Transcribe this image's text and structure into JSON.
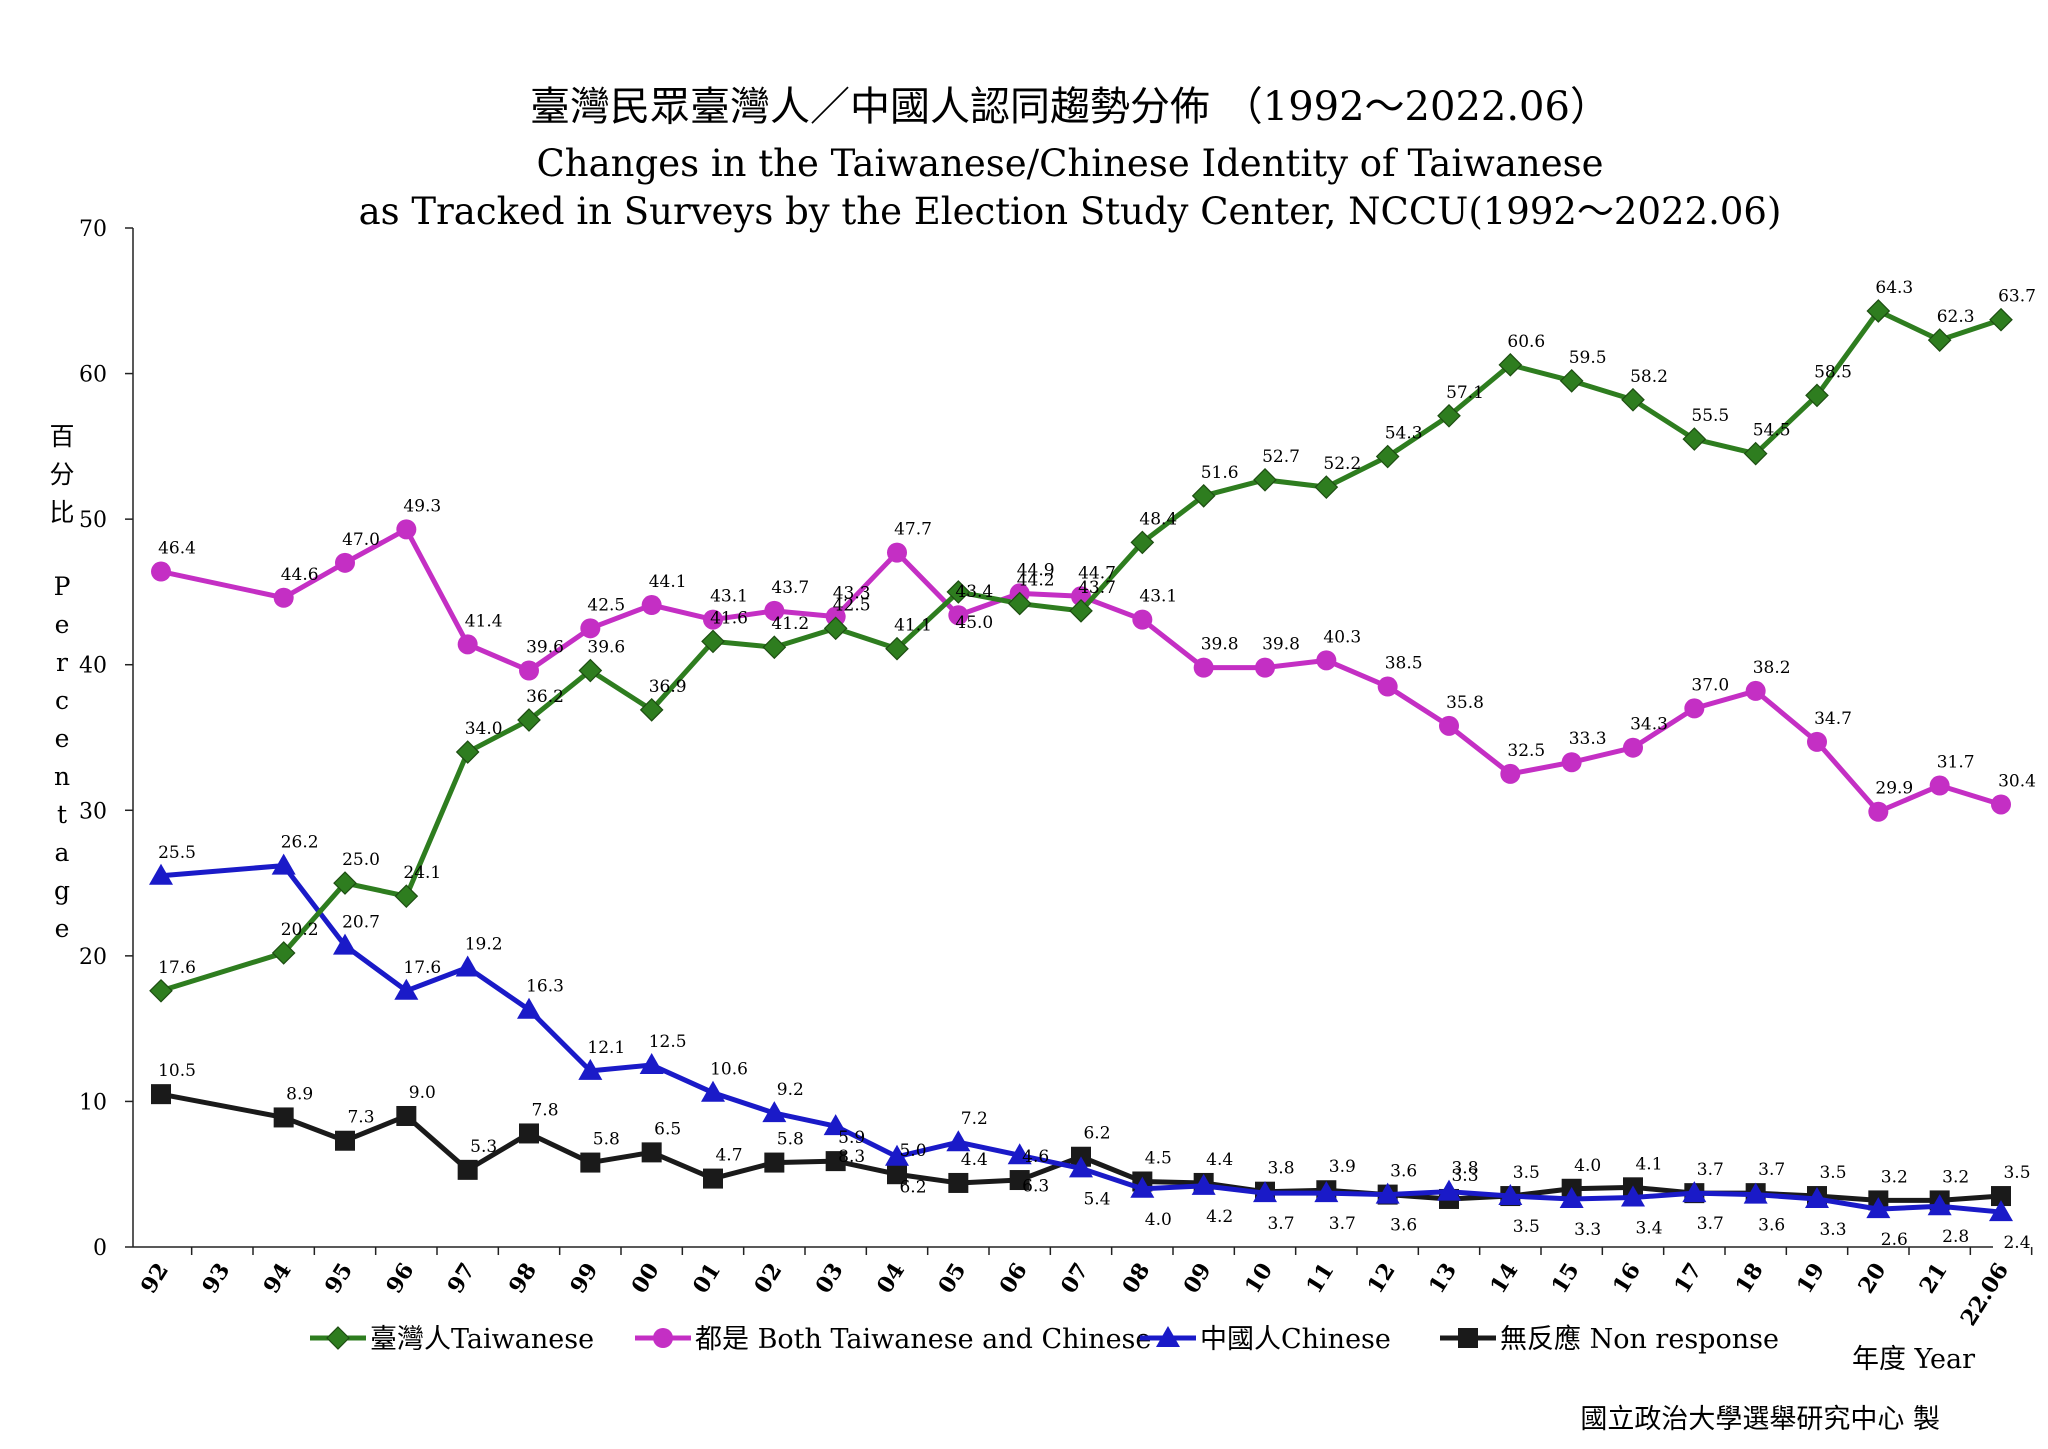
{
  "chart_data": {
    "type": "line",
    "title": "臺灣民眾臺灣人／中國人認同趨勢分佈 （1992～2022.06）",
    "subtitle_line1": "Changes in the Taiwanese/Chinese Identity of Taiwanese",
    "subtitle_line2": "as Tracked in Surveys by the Election Study Center, NCCU(1992～2022.06)",
    "ylabel_zh": [
      "百",
      "分",
      "比"
    ],
    "ylabel_en": [
      "P",
      "e",
      "r",
      "c",
      "e",
      "n",
      "t",
      "a",
      "g",
      "e"
    ],
    "xlabel": "年度 Year",
    "credit": "國立政治大學選舉研究中心 製",
    "ylim": [
      0,
      70
    ],
    "yticks": [
      0,
      10,
      20,
      30,
      40,
      50,
      60,
      70
    ],
    "categories": [
      "92",
      "93",
      "94",
      "95",
      "96",
      "97",
      "98",
      "99",
      "00",
      "01",
      "02",
      "03",
      "04",
      "05",
      "06",
      "07",
      "08",
      "09",
      "10",
      "11",
      "12",
      "13",
      "14",
      "15",
      "16",
      "17",
      "18",
      "19",
      "20",
      "21",
      "22.06"
    ],
    "series": [
      {
        "name": "臺灣人Taiwanese",
        "color": "#2e7d1f",
        "marker": "diamond",
        "values": [
          17.6,
          null,
          20.2,
          25.0,
          24.1,
          34.0,
          36.2,
          39.6,
          36.9,
          41.6,
          41.2,
          42.5,
          41.1,
          45.0,
          44.2,
          43.7,
          48.4,
          51.6,
          52.7,
          52.2,
          54.3,
          57.1,
          60.6,
          59.5,
          58.2,
          55.5,
          54.5,
          58.5,
          64.3,
          62.3,
          63.7
        ],
        "labels": [
          "17.6",
          null,
          "20.2",
          "25.0",
          "24.1",
          "34.0",
          "36.2",
          "39.6",
          "36.9",
          "41.6",
          "41.2",
          "42.5",
          "41.1",
          "45.0",
          "44.2",
          "43.7",
          "48.4",
          "51.6",
          "52.7",
          "52.2",
          "54.3",
          "57.1",
          "60.6",
          "59.5",
          "58.2",
          "55.5",
          "54.5",
          "58.5",
          "64.3",
          "62.3",
          "63.7"
        ]
      },
      {
        "name": "都是 Both Taiwanese and Chinese",
        "color": "#c42fc4",
        "marker": "circle",
        "values": [
          46.4,
          null,
          44.6,
          47.0,
          49.3,
          41.4,
          39.6,
          42.5,
          44.1,
          43.1,
          43.7,
          43.3,
          47.7,
          43.4,
          44.9,
          44.7,
          43.1,
          39.8,
          39.8,
          40.3,
          38.5,
          35.8,
          32.5,
          33.3,
          34.3,
          37.0,
          38.2,
          34.7,
          29.9,
          31.7,
          30.4
        ],
        "labels": [
          "46.4",
          null,
          "44.6",
          "47.0",
          "49.3",
          "41.4",
          "39.6",
          "42.5",
          "44.1",
          "43.1",
          "43.7",
          "43.3",
          "47.7",
          "43.4",
          "44.9",
          "44.7",
          "43.1",
          "39.8",
          "39.8",
          "40.3",
          "38.5",
          "35.8",
          "32.5",
          "33.3",
          "34.3",
          "37.0",
          "38.2",
          "34.7",
          "29.9",
          "31.7",
          "30.4"
        ]
      },
      {
        "name": "中國人Chinese",
        "color": "#1a1ac8",
        "marker": "triangle",
        "values": [
          25.5,
          null,
          26.2,
          20.7,
          17.6,
          19.2,
          16.3,
          12.1,
          12.5,
          10.6,
          9.2,
          8.3,
          6.2,
          7.2,
          6.3,
          5.4,
          4.0,
          4.2,
          3.7,
          3.7,
          3.6,
          3.8,
          3.5,
          3.3,
          3.4,
          3.7,
          3.6,
          3.3,
          2.6,
          2.8,
          2.4
        ],
        "labels": [
          "25.5",
          null,
          "26.2",
          "20.7",
          "17.6",
          "19.2",
          "16.3",
          "12.1",
          "12.5",
          "10.6",
          "9.2",
          "8.3",
          "6.2",
          "7.2",
          "6.3",
          "5.4",
          "4.0",
          "4.2",
          "3.7",
          "3.7",
          "3.6",
          "3.8",
          "3.5",
          "3.3",
          "3.4",
          "3.7",
          "3.6",
          "3.3",
          "2.6",
          "2.8",
          "2.4"
        ]
      },
      {
        "name": "無反應 Non response",
        "color": "#1a1a1a",
        "marker": "square",
        "values": [
          10.5,
          null,
          8.9,
          7.3,
          9.0,
          5.3,
          7.8,
          5.8,
          6.5,
          4.7,
          5.8,
          5.9,
          5.0,
          4.4,
          4.6,
          6.2,
          4.5,
          4.4,
          3.8,
          3.9,
          3.6,
          3.3,
          3.5,
          4.0,
          4.1,
          3.7,
          3.7,
          3.5,
          3.2,
          3.2,
          3.5
        ],
        "labels": [
          "10.5",
          null,
          "8.9",
          "7.3",
          "9.0",
          "5.3",
          "7.8",
          "5.8",
          "6.5",
          "4.7",
          "5.8",
          "5.9",
          "5.0",
          "4.4",
          "4.6",
          "6.2",
          "4.5",
          "4.4",
          "3.8",
          "3.9",
          "3.6",
          "3.3",
          "3.5",
          "4.0",
          "4.1",
          "3.7",
          "3.7",
          "3.5",
          "3.2",
          "3.2",
          "3.5"
        ]
      }
    ],
    "legend_position": "bottom",
    "grid": false
  }
}
